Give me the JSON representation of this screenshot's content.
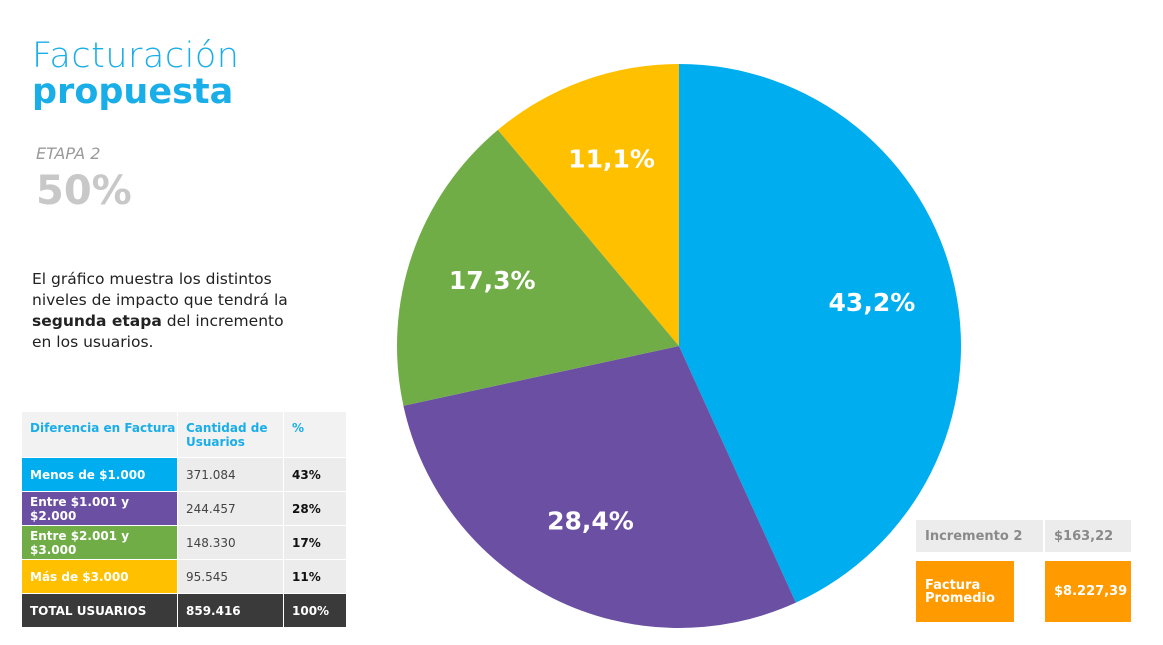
{
  "header": {
    "title_line1": "Facturación",
    "title_line2": "propuesta",
    "stage": "ETAPA 2",
    "stage_value": "50%"
  },
  "description": [
    "El gráfico muestra los distintos niveles de impacto que tendrá la ",
    "segunda etapa",
    " del incremento  en los usuarios."
  ],
  "table": {
    "header": [
      "Diferencia en Factura",
      "Cantidad de Usuarios",
      "%"
    ],
    "rows": [
      [
        "Menos de $1.000",
        "371.084",
        "43%"
      ],
      [
        "Entre $1.001 y $2.000",
        "244.457",
        "28%"
      ],
      [
        "Entre $2.001 y $3.000",
        "148.330",
        "17%"
      ],
      [
        "Más de $3.000",
        "95.545",
        "11%"
      ],
      [
        "TOTAL USUARIOS",
        "859.416",
        "100%"
      ]
    ]
  },
  "summary": {
    "rows": [
      [
        "Incremento 2",
        "$163,22"
      ],
      [
        "Factura Promedio",
        "$8.227,39"
      ]
    ]
  },
  "chart_data": {
    "type": "pie",
    "values": [
      43.2,
      28.4,
      17.3,
      11.1
    ],
    "value_labels": [
      "43,2%",
      "28,4%",
      "17,3%",
      "11,1%"
    ],
    "colors": [
      "#00aeef",
      "#6a4fa3",
      "#71ad47",
      "#ffc000"
    ]
  }
}
